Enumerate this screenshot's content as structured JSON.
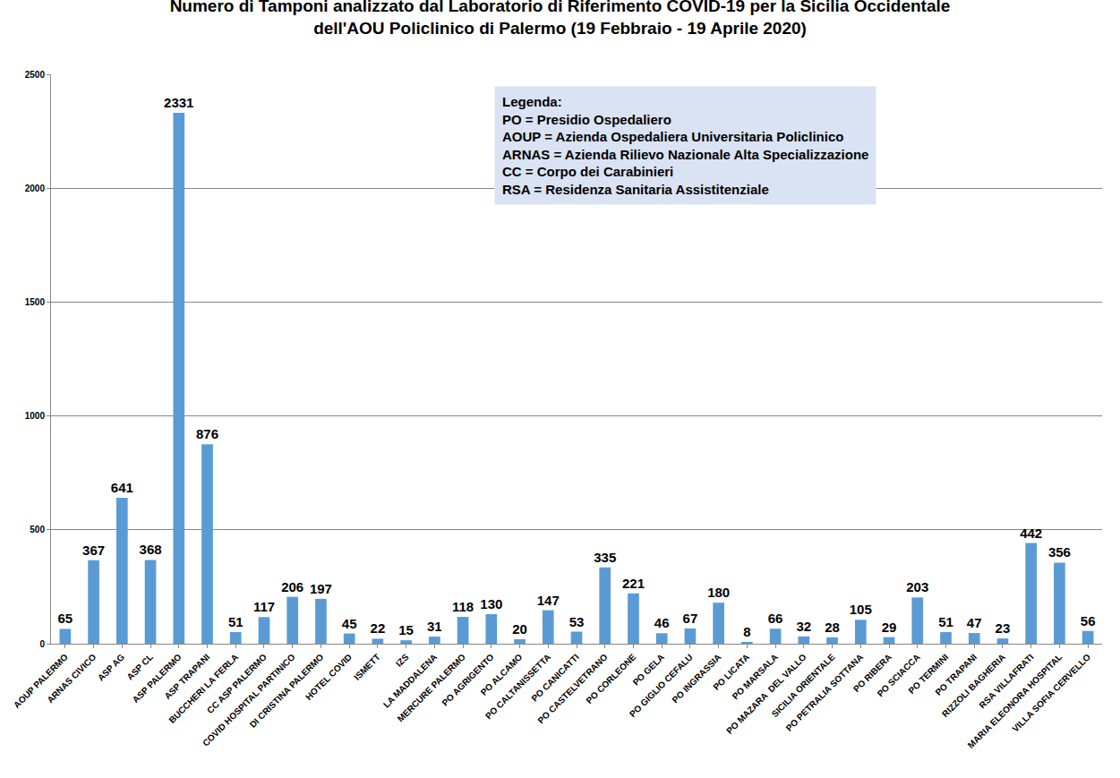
{
  "chart_data": {
    "type": "bar",
    "title": "Numero di Tamponi analizzato dal Laboratorio di Riferimento COVID-19 per la Sicilia Occidentale\ndell'AOU Policlinico di Palermo (19 Febbraio - 19 Aprile 2020)",
    "annotations": [
      "Legenda:",
      "PO = Presidio Ospedaliero",
      "AOUP = Azienda Ospedaliera Universitaria Policlinico",
      "ARNAS = Azienda Rilievo Nazionale Alta Specializzazione",
      "CC = Corpo dei Carabinieri",
      "RSA = Residenza Sanitaria Assistitenziale"
    ],
    "categories": [
      "AOUP PALERMO",
      "ARNAS CIVICO",
      "ASP AG",
      "ASP CL",
      "ASP PALERMO",
      "ASP TRAPANI",
      "BUCCHERI LA FERLA",
      "CC ASP PALERMO",
      "COVID HOSPITAL PARTINICO",
      "DI CRISTINA PALERMO",
      "HOTEL COVID",
      "ISMETT",
      "IZS",
      "LA MADDALENA",
      "MERCURE PALERMO",
      "PO AGRIGENTO",
      "PO ALCAMO",
      "PO CALTANISSETTA",
      "PO CANICATTI",
      "PO CASTELVETRANO",
      "PO CORLEONE",
      "PO GELA",
      "PO GIGLIO CEFALU",
      "PO INGRASSIA",
      "PO LICATA",
      "PO MARSALA",
      "PO MAZARA  DEL VALLO",
      "SICILIA ORIENTALE",
      "PO PETRALIA SOTTANA",
      "PO RIBERA",
      "PO SCIACCA",
      "PO TERMINI",
      "PO TRAPANI",
      "RIZZOLI BAGHERIA",
      "RSA VILLAFRATI",
      "MARIA ELEONORA HOSPITAL",
      "VILLA SOFIA CERVELLO"
    ],
    "values": [
      65,
      367,
      641,
      368,
      2331,
      876,
      51,
      117,
      206,
      197,
      45,
      22,
      15,
      31,
      118,
      130,
      20,
      147,
      53,
      335,
      221,
      46,
      67,
      180,
      8,
      66,
      32,
      28,
      105,
      29,
      203,
      51,
      47,
      23,
      442,
      356,
      56
    ],
    "color": "#5b9bd5",
    "ylim": [
      0,
      2500
    ],
    "yticks": [
      0,
      500,
      1000,
      1500,
      2000,
      2500
    ],
    "grid": true,
    "data_labels": true
  }
}
